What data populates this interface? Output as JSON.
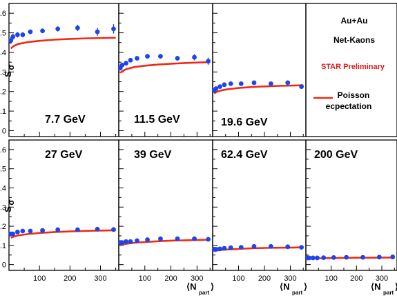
{
  "chart_data": {
    "type": "scatter",
    "title": "",
    "xlabel_main": "⟨N",
    "xlabel_sub": "part",
    "xlabel_close": "⟩",
    "ylabel_main": "S",
    "ylabel_sigma": "σ",
    "xlim": [
      0,
      360
    ],
    "x_ticks": [
      "100",
      "200",
      "300"
    ],
    "y_ticks": [
      "0",
      "0.1",
      "0.2",
      "0.3",
      "0.4",
      "0.5",
      "0.6"
    ],
    "legend": {
      "system": "Au+Au",
      "particle": "Net-Kaons",
      "preliminary": "STAR Preliminary",
      "line_label_1": "Poisson",
      "line_label_2": "ecpectation"
    },
    "colors": {
      "data": "#1f45e8",
      "poisson": "#ee2a16",
      "preliminary": "#dd1a1a",
      "frame": "#000000"
    },
    "panels": [
      {
        "energy": "7.7 GeV",
        "row": 0,
        "col": 0,
        "ylim": [
          -0.03,
          0.65
        ],
        "points": [
          [
            6,
            0.46
          ],
          [
            13,
            0.48
          ],
          [
            28,
            0.49
          ],
          [
            45,
            0.49
          ],
          [
            70,
            0.505
          ],
          [
            110,
            0.51
          ],
          [
            160,
            0.52
          ],
          [
            225,
            0.525
          ],
          [
            290,
            0.505
          ],
          [
            343,
            0.52
          ]
        ],
        "errors": [
          0.018,
          0.016,
          0.014,
          0.013,
          0.012,
          0.012,
          0.013,
          0.016,
          0.02,
          0.024
        ],
        "poisson": [
          [
            6,
            0.42
          ],
          [
            15,
            0.432
          ],
          [
            30,
            0.443
          ],
          [
            60,
            0.452
          ],
          [
            100,
            0.459
          ],
          [
            150,
            0.465
          ],
          [
            200,
            0.469
          ],
          [
            260,
            0.472
          ],
          [
            320,
            0.474
          ],
          [
            350,
            0.475
          ]
        ]
      },
      {
        "energy": "11.5 GeV",
        "row": 0,
        "col": 1,
        "ylim": [
          -0.03,
          0.65
        ],
        "points": [
          [
            6,
            0.32
          ],
          [
            13,
            0.335
          ],
          [
            28,
            0.345
          ],
          [
            45,
            0.36
          ],
          [
            70,
            0.37
          ],
          [
            110,
            0.38
          ],
          [
            160,
            0.38
          ],
          [
            225,
            0.37
          ],
          [
            290,
            0.375
          ],
          [
            343,
            0.355
          ]
        ],
        "errors": [
          0.012,
          0.012,
          0.01,
          0.01,
          0.01,
          0.01,
          0.01,
          0.012,
          0.016,
          0.018
        ],
        "poisson": [
          [
            6,
            0.295
          ],
          [
            15,
            0.305
          ],
          [
            30,
            0.315
          ],
          [
            60,
            0.325
          ],
          [
            100,
            0.332
          ],
          [
            150,
            0.338
          ],
          [
            200,
            0.342
          ],
          [
            260,
            0.346
          ],
          [
            320,
            0.349
          ],
          [
            350,
            0.35
          ]
        ]
      },
      {
        "energy": "19.6 GeV",
        "row": 0,
        "col": 2,
        "ylim": [
          -0.03,
          0.65
        ],
        "points": [
          [
            6,
            0.205
          ],
          [
            13,
            0.215
          ],
          [
            28,
            0.225
          ],
          [
            45,
            0.235
          ],
          [
            70,
            0.24
          ],
          [
            110,
            0.24
          ],
          [
            160,
            0.245
          ],
          [
            225,
            0.24
          ],
          [
            290,
            0.245
          ],
          [
            343,
            0.225
          ]
        ],
        "errors": [
          0.01,
          0.009,
          0.008,
          0.008,
          0.008,
          0.008,
          0.008,
          0.009,
          0.01,
          0.012
        ],
        "poisson": [
          [
            6,
            0.19
          ],
          [
            15,
            0.198
          ],
          [
            30,
            0.205
          ],
          [
            60,
            0.212
          ],
          [
            100,
            0.218
          ],
          [
            150,
            0.223
          ],
          [
            200,
            0.226
          ],
          [
            260,
            0.229
          ],
          [
            320,
            0.231
          ],
          [
            350,
            0.232
          ]
        ]
      },
      {
        "energy": "27 GeV",
        "row": 1,
        "col": 0,
        "ylim": [
          -0.03,
          0.65
        ],
        "points": [
          [
            6,
            0.16
          ],
          [
            13,
            0.16
          ],
          [
            28,
            0.17
          ],
          [
            45,
            0.175
          ],
          [
            70,
            0.175
          ],
          [
            110,
            0.178
          ],
          [
            160,
            0.182
          ],
          [
            225,
            0.182
          ],
          [
            290,
            0.185
          ],
          [
            343,
            0.183
          ]
        ],
        "errors": [
          0.006,
          0.006,
          0.006,
          0.005,
          0.005,
          0.005,
          0.005,
          0.006,
          0.007,
          0.008
        ],
        "poisson": [
          [
            6,
            0.14
          ],
          [
            15,
            0.146
          ],
          [
            30,
            0.152
          ],
          [
            60,
            0.159
          ],
          [
            100,
            0.165
          ],
          [
            150,
            0.17
          ],
          [
            200,
            0.173
          ],
          [
            260,
            0.176
          ],
          [
            320,
            0.178
          ],
          [
            350,
            0.179
          ]
        ]
      },
      {
        "energy": "39 GeV",
        "row": 1,
        "col": 1,
        "ylim": [
          -0.03,
          0.65
        ],
        "points": [
          [
            6,
            0.115
          ],
          [
            13,
            0.115
          ],
          [
            28,
            0.12
          ],
          [
            45,
            0.12
          ],
          [
            70,
            0.125
          ],
          [
            110,
            0.13
          ],
          [
            160,
            0.135
          ],
          [
            225,
            0.135
          ],
          [
            290,
            0.135
          ],
          [
            343,
            0.132
          ]
        ],
        "errors": [
          0.005,
          0.005,
          0.005,
          0.005,
          0.005,
          0.005,
          0.005,
          0.005,
          0.006,
          0.007
        ],
        "poisson": [
          [
            6,
            0.1
          ],
          [
            15,
            0.105
          ],
          [
            30,
            0.109
          ],
          [
            60,
            0.114
          ],
          [
            100,
            0.118
          ],
          [
            150,
            0.122
          ],
          [
            200,
            0.125
          ],
          [
            260,
            0.127
          ],
          [
            320,
            0.129
          ],
          [
            350,
            0.13
          ]
        ]
      },
      {
        "energy": "62.4 GeV",
        "row": 1,
        "col": 2,
        "ylim": [
          -0.03,
          0.65
        ],
        "points": [
          [
            6,
            0.08
          ],
          [
            13,
            0.08
          ],
          [
            28,
            0.082
          ],
          [
            45,
            0.085
          ],
          [
            70,
            0.088
          ],
          [
            110,
            0.09
          ],
          [
            160,
            0.095
          ],
          [
            225,
            0.095
          ],
          [
            290,
            0.093
          ],
          [
            343,
            0.09
          ]
        ],
        "errors": [
          0.004,
          0.004,
          0.004,
          0.004,
          0.004,
          0.004,
          0.004,
          0.004,
          0.005,
          0.006
        ],
        "poisson": [
          [
            6,
            0.07
          ],
          [
            15,
            0.073
          ],
          [
            30,
            0.076
          ],
          [
            60,
            0.079
          ],
          [
            100,
            0.082
          ],
          [
            150,
            0.085
          ],
          [
            200,
            0.087
          ],
          [
            260,
            0.088
          ],
          [
            320,
            0.089
          ],
          [
            350,
            0.09
          ]
        ]
      },
      {
        "energy": "200 GeV",
        "row": 1,
        "col": 3,
        "ylim": [
          -0.03,
          0.65
        ],
        "points": [
          [
            6,
            0.035
          ],
          [
            13,
            0.035
          ],
          [
            28,
            0.035
          ],
          [
            45,
            0.035
          ],
          [
            70,
            0.036
          ],
          [
            110,
            0.037
          ],
          [
            160,
            0.038
          ],
          [
            225,
            0.038
          ],
          [
            290,
            0.039
          ],
          [
            343,
            0.04
          ]
        ],
        "errors": [
          0.003,
          0.003,
          0.003,
          0.003,
          0.003,
          0.003,
          0.003,
          0.003,
          0.003,
          0.004
        ],
        "poisson": [
          [
            6,
            0.03
          ],
          [
            15,
            0.031
          ],
          [
            30,
            0.032
          ],
          [
            60,
            0.033
          ],
          [
            100,
            0.034
          ],
          [
            150,
            0.035
          ],
          [
            200,
            0.036
          ],
          [
            260,
            0.036
          ],
          [
            320,
            0.037
          ],
          [
            350,
            0.037
          ]
        ]
      }
    ]
  }
}
